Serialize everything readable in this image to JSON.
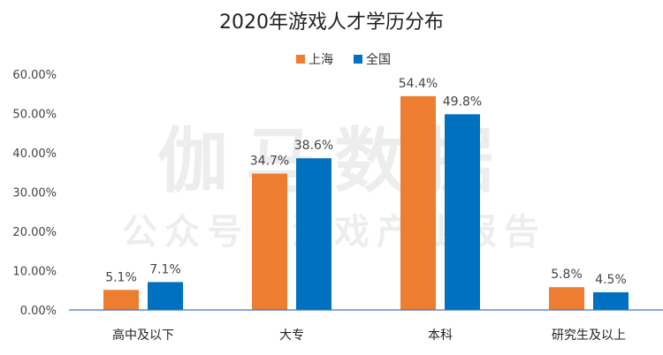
{
  "watermark": {
    "line1": "伽马数据",
    "line2": "公众号：游戏产业报告"
  },
  "chart_data": {
    "type": "bar",
    "title": "2020年游戏人才学历分布",
    "xlabel": "",
    "ylabel": "",
    "categories": [
      "高中及以下",
      "大专",
      "本科",
      "研究生及以上"
    ],
    "series": [
      {
        "name": "上海",
        "color": "#ED7D31",
        "values": [
          5.1,
          34.7,
          54.4,
          5.8
        ],
        "labels": [
          "5.1%",
          "34.7%",
          "54.4%",
          "5.8%"
        ]
      },
      {
        "name": "全国",
        "color": "#0070C0",
        "values": [
          7.1,
          38.6,
          49.8,
          4.5
        ],
        "labels": [
          "7.1%",
          "38.6%",
          "49.8%",
          "4.5%"
        ]
      }
    ],
    "ylim": [
      0,
      60
    ],
    "yticks": [
      "0.00%",
      "10.00%",
      "20.00%",
      "30.00%",
      "40.00%",
      "50.00%",
      "60.00%"
    ],
    "grid": false,
    "legend_position": "top-center"
  }
}
